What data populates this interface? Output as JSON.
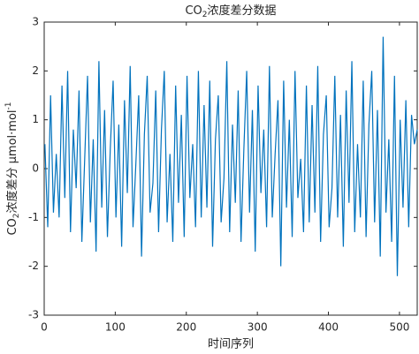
{
  "chart_data": {
    "type": "line",
    "title": [
      "CO",
      "2",
      "浓度差分数据"
    ],
    "ylabel": [
      "CO",
      "2",
      "浓度差分 μmol·mol",
      "-1"
    ],
    "xlabel": "时间序列",
    "color": "#0072bd",
    "xlim": [
      0,
      525
    ],
    "xticks": [
      0,
      100,
      200,
      300,
      400,
      500
    ],
    "ylim": [
      -3,
      3
    ],
    "yticks": [
      -3,
      -2,
      -1,
      0,
      1,
      2,
      3
    ],
    "x": [
      1,
      5,
      9,
      13,
      17,
      21,
      25,
      29,
      33,
      37,
      41,
      45,
      49,
      53,
      57,
      61,
      65,
      69,
      73,
      77,
      81,
      85,
      89,
      93,
      97,
      101,
      105,
      109,
      113,
      117,
      121,
      125,
      129,
      133,
      137,
      141,
      145,
      149,
      153,
      157,
      161,
      165,
      169,
      173,
      177,
      181,
      185,
      189,
      193,
      197,
      201,
      205,
      209,
      213,
      217,
      221,
      225,
      229,
      233,
      237,
      241,
      245,
      249,
      253,
      257,
      261,
      265,
      269,
      273,
      277,
      281,
      285,
      289,
      293,
      297,
      301,
      305,
      309,
      313,
      317,
      321,
      325,
      329,
      333,
      337,
      341,
      345,
      349,
      353,
      357,
      361,
      365,
      369,
      373,
      377,
      381,
      385,
      389,
      393,
      397,
      401,
      405,
      409,
      413,
      417,
      421,
      425,
      429,
      433,
      437,
      441,
      445,
      449,
      453,
      457,
      461,
      465,
      469,
      473,
      477,
      481,
      485,
      489,
      493,
      497,
      501,
      505,
      509,
      513,
      517,
      521,
      525
    ],
    "values": [
      0.5,
      -1.2,
      1.5,
      -0.9,
      0.3,
      -1.0,
      1.7,
      -0.6,
      2.0,
      -1.3,
      0.8,
      -0.4,
      1.6,
      -1.5,
      0.2,
      1.9,
      -1.1,
      0.6,
      -1.7,
      2.2,
      -0.8,
      1.2,
      -1.4,
      0.4,
      1.8,
      -1.0,
      0.9,
      -1.6,
      1.4,
      -0.5,
      2.1,
      -1.2,
      0.1,
      1.5,
      -1.8,
      0.7,
      1.9,
      -0.9,
      -0.3,
      1.6,
      -1.3,
      0.8,
      2.0,
      -1.1,
      0.3,
      -1.5,
      1.7,
      -0.7,
      1.1,
      -1.4,
      1.9,
      -0.6,
      0.5,
      -1.2,
      2.0,
      -1.0,
      1.3,
      -0.8,
      1.8,
      -1.6,
      0.6,
      1.5,
      -1.1,
      -0.2,
      2.2,
      -1.3,
      0.9,
      -0.7,
      1.6,
      -1.5,
      0.4,
      2.0,
      -0.9,
      1.2,
      -1.7,
      1.7,
      -0.5,
      0.8,
      -1.2,
      2.1,
      -1.0,
      0.3,
      1.4,
      -2.0,
      1.8,
      -0.8,
      1.0,
      -1.4,
      2.0,
      -0.6,
      0.2,
      -1.3,
      1.7,
      -1.1,
      1.3,
      -0.9,
      2.1,
      -1.5,
      0.7,
      1.5,
      -1.2,
      -0.4,
      1.9,
      -1.0,
      1.1,
      -1.6,
      1.6,
      -0.7,
      2.2,
      -1.3,
      0.5,
      -1.0,
      1.8,
      -1.4,
      0.9,
      2.0,
      -1.1,
      1.2,
      -1.8,
      2.7,
      -0.9,
      0.6,
      -1.5,
      1.9,
      -2.2,
      1.0,
      -0.8,
      1.4,
      -1.2,
      1.1,
      0.5,
      0.8
    ]
  }
}
